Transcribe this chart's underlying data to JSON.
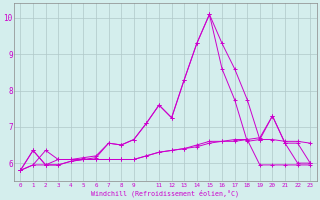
{
  "xlabel": "Windchill (Refroidissement éolien,°C)",
  "background_color": "#d4eeed",
  "grid_color": "#b0c8c8",
  "line_color": "#cc00cc",
  "ylim": [
    5.5,
    10.4
  ],
  "xlim": [
    -0.5,
    23.5
  ],
  "yticks": [
    6,
    7,
    8,
    9,
    10
  ],
  "xtick_positions": [
    0,
    1,
    2,
    3,
    4,
    5,
    6,
    7,
    8,
    9,
    10,
    11,
    12,
    13,
    14,
    15,
    16,
    17,
    18,
    19,
    20,
    21,
    22,
    23
  ],
  "xtick_labels": [
    "0",
    "1",
    "2",
    "3",
    "4",
    "5",
    "6",
    "7",
    "8",
    "9",
    "",
    "11",
    "12",
    "13",
    "14",
    "15",
    "16",
    "17",
    "18",
    "19",
    "20",
    "21",
    "22",
    "23"
  ],
  "series": [
    [
      5.8,
      6.35,
      5.95,
      5.95,
      6.05,
      6.1,
      6.15,
      6.55,
      6.5,
      6.65,
      7.1,
      7.6,
      7.25,
      8.3,
      9.3,
      10.1,
      9.3,
      8.6,
      7.75,
      6.65,
      6.65,
      6.6,
      6.6,
      6.55
    ],
    [
      5.8,
      6.35,
      5.95,
      5.95,
      6.05,
      6.1,
      6.1,
      6.1,
      6.1,
      6.1,
      6.2,
      6.3,
      6.35,
      6.4,
      6.5,
      6.6,
      6.6,
      6.65,
      6.65,
      6.7,
      7.3,
      6.55,
      6.0,
      6.0
    ],
    [
      5.8,
      5.95,
      5.95,
      6.1,
      6.1,
      6.1,
      6.1,
      6.1,
      6.1,
      6.1,
      6.2,
      6.3,
      6.35,
      6.4,
      6.45,
      6.55,
      6.6,
      6.6,
      6.65,
      5.95,
      5.95,
      5.95,
      5.95,
      5.95
    ],
    [
      5.8,
      5.95,
      6.35,
      6.1,
      6.1,
      6.15,
      6.2,
      6.55,
      6.5,
      6.65,
      7.1,
      7.6,
      7.25,
      8.3,
      9.3,
      10.1,
      8.6,
      7.75,
      6.6,
      6.65,
      7.3,
      6.55,
      6.55,
      6.0
    ]
  ]
}
